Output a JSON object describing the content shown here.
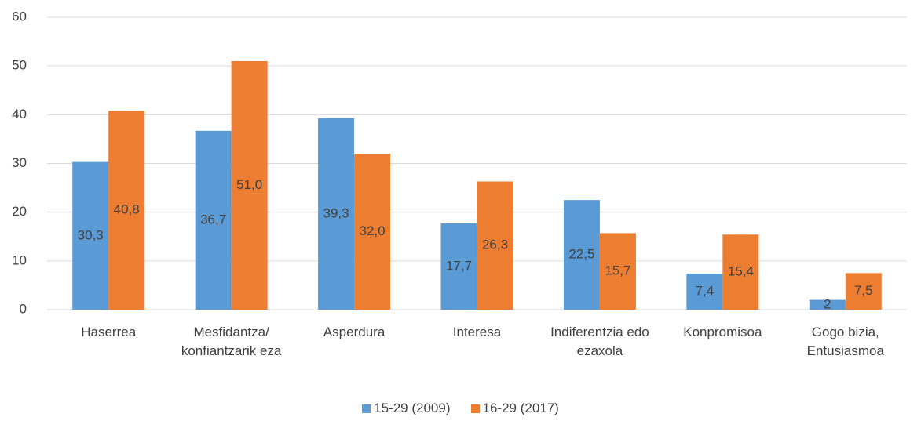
{
  "chart_data": {
    "type": "bar",
    "categories": [
      "Haserrea",
      "Mesfidantza/ konfiantzarik eza",
      "Asperdura",
      "Interesa",
      "Indiferentzia edo ezaxola",
      "Konpromisoa",
      "Gogo bizia, Entusiasmoa"
    ],
    "series": [
      {
        "name": "15-29 (2009)",
        "color": "#5b9bd5",
        "values": [
          30.3,
          36.7,
          39.3,
          17.7,
          22.5,
          7.4,
          2
        ],
        "value_labels": [
          "30,3",
          "36,7",
          "39,3",
          "17,7",
          "22,5",
          "7,4",
          "2"
        ]
      },
      {
        "name": "16-29 (2017)",
        "color": "#ed7d31",
        "values": [
          40.8,
          51.0,
          32.0,
          26.3,
          15.7,
          15.4,
          7.5
        ],
        "value_labels": [
          "40,8",
          "51,0",
          "32,0",
          "26,3",
          "15,7",
          "15,4",
          "7,5"
        ]
      }
    ],
    "ylim": [
      0,
      60
    ],
    "yticks": [
      0,
      10,
      20,
      30,
      40,
      50,
      60
    ],
    "grid": true,
    "legend": "bottom"
  }
}
